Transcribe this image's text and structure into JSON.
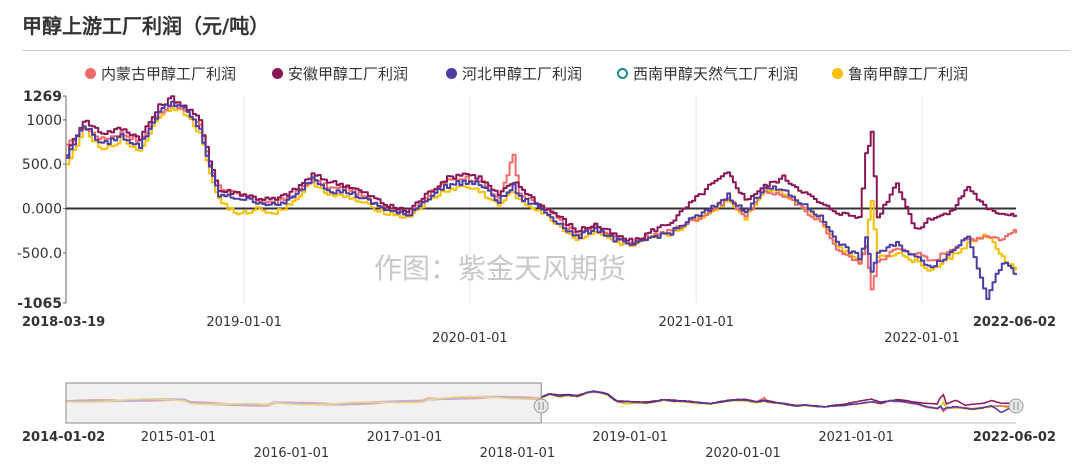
{
  "title": "甲醇上游工厂利润（元/吨）",
  "watermark": "作图：紫金天风期货",
  "chart_data": {
    "type": "line",
    "title": "甲醇上游工厂利润（元/吨）",
    "xlabel": "",
    "ylabel": "",
    "x_range": [
      "2018-03-19",
      "2022-06-02"
    ],
    "ylim": [
      -1065,
      1269
    ],
    "y_ticks": [
      {
        "value": 1269,
        "label": "1269"
      },
      {
        "value": 1000,
        "label": "1000"
      },
      {
        "value": 500,
        "label": "500.0"
      },
      {
        "value": 0,
        "label": "0.000"
      },
      {
        "value": -500,
        "label": "-500.0"
      },
      {
        "value": -1065,
        "label": "-1065"
      }
    ],
    "x_ticks": [
      {
        "date": "2018-03-19",
        "label": "2018-03-19",
        "row": 0,
        "edge": "start"
      },
      {
        "date": "2019-01-01",
        "label": "2019-01-01",
        "row": 0
      },
      {
        "date": "2020-01-01",
        "label": "2020-01-01",
        "row": 1
      },
      {
        "date": "2021-01-01",
        "label": "2021-01-01",
        "row": 0
      },
      {
        "date": "2022-01-01",
        "label": "2022-01-01",
        "row": 1
      },
      {
        "date": "2022-06-02",
        "label": "2022-06-02",
        "row": 0,
        "edge": "end"
      }
    ],
    "legend_position": "top",
    "grid": "vertical",
    "series": [
      {
        "name": "内蒙古甲醇工厂利润",
        "color": "#f26b6b",
        "marker": "filled",
        "points": [
          [
            "2018-03-19",
            700
          ],
          [
            "2018-04-15",
            920
          ],
          [
            "2018-05-15",
            780
          ],
          [
            "2018-06-15",
            850
          ],
          [
            "2018-07-15",
            760
          ],
          [
            "2018-08-15",
            1080
          ],
          [
            "2018-09-05",
            1180
          ],
          [
            "2018-09-25",
            1100
          ],
          [
            "2018-10-20",
            950
          ],
          [
            "2018-11-05",
            500
          ],
          [
            "2018-11-20",
            250
          ],
          [
            "2018-12-20",
            150
          ],
          [
            "2019-01-20",
            100
          ],
          [
            "2019-02-20",
            60
          ],
          [
            "2019-03-20",
            150
          ],
          [
            "2019-04-20",
            320
          ],
          [
            "2019-05-20",
            230
          ],
          [
            "2019-06-20",
            220
          ],
          [
            "2019-07-20",
            100
          ],
          [
            "2019-08-20",
            10
          ],
          [
            "2019-09-20",
            -60
          ],
          [
            "2019-10-20",
            120
          ],
          [
            "2019-11-20",
            300
          ],
          [
            "2019-12-20",
            350
          ],
          [
            "2020-01-15",
            320
          ],
          [
            "2020-02-15",
            100
          ],
          [
            "2020-03-10",
            600
          ],
          [
            "2020-03-20",
            150
          ],
          [
            "2020-04-20",
            40
          ],
          [
            "2020-05-15",
            -80
          ],
          [
            "2020-06-20",
            -300
          ],
          [
            "2020-07-20",
            -200
          ],
          [
            "2020-08-20",
            -320
          ],
          [
            "2020-09-20",
            -400
          ],
          [
            "2020-10-20",
            -300
          ],
          [
            "2020-11-20",
            -250
          ],
          [
            "2020-12-20",
            -150
          ],
          [
            "2021-01-20",
            -40
          ],
          [
            "2021-02-20",
            120
          ],
          [
            "2021-03-20",
            -80
          ],
          [
            "2021-04-20",
            200
          ],
          [
            "2021-05-20",
            150
          ],
          [
            "2021-06-20",
            0
          ],
          [
            "2021-07-20",
            -150
          ],
          [
            "2021-08-20",
            -500
          ],
          [
            "2021-09-20",
            -600
          ],
          [
            "2021-10-01",
            -450
          ],
          [
            "2021-10-10",
            -900
          ],
          [
            "2021-10-20",
            -600
          ],
          [
            "2021-11-20",
            -450
          ],
          [
            "2021-12-20",
            -500
          ],
          [
            "2022-01-15",
            -600
          ],
          [
            "2022-02-15",
            -450
          ],
          [
            "2022-03-15",
            -350
          ],
          [
            "2022-04-15",
            -300
          ],
          [
            "2022-05-10",
            -350
          ],
          [
            "2022-05-25",
            -250
          ],
          [
            "2022-06-02",
            -280
          ]
        ]
      },
      {
        "name": "安徽甲醇工厂利润",
        "color": "#8a1656",
        "marker": "filled",
        "points": [
          [
            "2018-03-19",
            620
          ],
          [
            "2018-04-15",
            1000
          ],
          [
            "2018-05-15",
            850
          ],
          [
            "2018-06-15",
            900
          ],
          [
            "2018-07-15",
            800
          ],
          [
            "2018-08-15",
            1150
          ],
          [
            "2018-09-05",
            1250
          ],
          [
            "2018-09-25",
            1150
          ],
          [
            "2018-10-20",
            1000
          ],
          [
            "2018-11-05",
            550
          ],
          [
            "2018-11-20",
            200
          ],
          [
            "2018-12-20",
            180
          ],
          [
            "2019-01-20",
            120
          ],
          [
            "2019-02-20",
            100
          ],
          [
            "2019-03-20",
            200
          ],
          [
            "2019-04-20",
            380
          ],
          [
            "2019-05-20",
            300
          ],
          [
            "2019-06-20",
            250
          ],
          [
            "2019-07-20",
            150
          ],
          [
            "2019-08-20",
            30
          ],
          [
            "2019-09-20",
            -30
          ],
          [
            "2019-10-20",
            150
          ],
          [
            "2019-11-20",
            330
          ],
          [
            "2019-12-20",
            400
          ],
          [
            "2020-01-15",
            350
          ],
          [
            "2020-02-15",
            150
          ],
          [
            "2020-03-10",
            300
          ],
          [
            "2020-03-20",
            250
          ],
          [
            "2020-04-20",
            50
          ],
          [
            "2020-05-15",
            -50
          ],
          [
            "2020-06-20",
            -250
          ],
          [
            "2020-07-20",
            -180
          ],
          [
            "2020-08-20",
            -300
          ],
          [
            "2020-09-20",
            -380
          ],
          [
            "2020-10-20",
            -250
          ],
          [
            "2020-11-20",
            -150
          ],
          [
            "2020-12-20",
            50
          ],
          [
            "2021-01-20",
            250
          ],
          [
            "2021-02-20",
            400
          ],
          [
            "2021-03-20",
            100
          ],
          [
            "2021-04-20",
            250
          ],
          [
            "2021-05-20",
            350
          ],
          [
            "2021-06-20",
            200
          ],
          [
            "2021-07-20",
            50
          ],
          [
            "2021-08-20",
            -50
          ],
          [
            "2021-09-20",
            -100
          ],
          [
            "2021-10-01",
            600
          ],
          [
            "2021-10-10",
            850
          ],
          [
            "2021-10-20",
            -100
          ],
          [
            "2021-11-20",
            300
          ],
          [
            "2021-12-20",
            -250
          ],
          [
            "2022-01-15",
            -100
          ],
          [
            "2022-02-15",
            -50
          ],
          [
            "2022-03-15",
            250
          ],
          [
            "2022-04-15",
            -20
          ],
          [
            "2022-05-10",
            -50
          ],
          [
            "2022-05-25",
            -60
          ],
          [
            "2022-06-02",
            -70
          ]
        ]
      },
      {
        "name": "河北甲醇工厂利润",
        "color": "#4b3ea3",
        "marker": "filled",
        "points": [
          [
            "2018-03-19",
            580
          ],
          [
            "2018-04-15",
            950
          ],
          [
            "2018-05-15",
            720
          ],
          [
            "2018-06-15",
            820
          ],
          [
            "2018-07-15",
            700
          ],
          [
            "2018-08-15",
            1100
          ],
          [
            "2018-09-05",
            1200
          ],
          [
            "2018-09-25",
            1120
          ],
          [
            "2018-10-20",
            900
          ],
          [
            "2018-11-05",
            450
          ],
          [
            "2018-11-20",
            150
          ],
          [
            "2018-12-20",
            120
          ],
          [
            "2019-01-20",
            80
          ],
          [
            "2019-02-20",
            30
          ],
          [
            "2019-03-20",
            120
          ],
          [
            "2019-04-20",
            350
          ],
          [
            "2019-05-20",
            200
          ],
          [
            "2019-06-20",
            180
          ],
          [
            "2019-07-20",
            80
          ],
          [
            "2019-08-20",
            -20
          ],
          [
            "2019-09-20",
            -80
          ],
          [
            "2019-10-20",
            100
          ],
          [
            "2019-11-20",
            250
          ],
          [
            "2019-12-20",
            300
          ],
          [
            "2020-01-15",
            280
          ],
          [
            "2020-02-15",
            80
          ],
          [
            "2020-03-10",
            250
          ],
          [
            "2020-03-20",
            120
          ],
          [
            "2020-04-20",
            20
          ],
          [
            "2020-05-15",
            -120
          ],
          [
            "2020-06-20",
            -330
          ],
          [
            "2020-07-20",
            -220
          ],
          [
            "2020-08-20",
            -350
          ],
          [
            "2020-09-20",
            -420
          ],
          [
            "2020-10-20",
            -320
          ],
          [
            "2020-11-20",
            -270
          ],
          [
            "2020-12-20",
            -130
          ],
          [
            "2021-01-20",
            -20
          ],
          [
            "2021-02-20",
            150
          ],
          [
            "2021-03-20",
            -50
          ],
          [
            "2021-04-20",
            250
          ],
          [
            "2021-05-20",
            200
          ],
          [
            "2021-06-20",
            50
          ],
          [
            "2021-07-20",
            -100
          ],
          [
            "2021-08-20",
            -400
          ],
          [
            "2021-09-20",
            -550
          ],
          [
            "2021-10-01",
            -350
          ],
          [
            "2021-10-10",
            -700
          ],
          [
            "2021-10-20",
            -500
          ],
          [
            "2021-11-20",
            -400
          ],
          [
            "2021-12-20",
            -550
          ],
          [
            "2022-01-15",
            -650
          ],
          [
            "2022-02-15",
            -500
          ],
          [
            "2022-03-15",
            -300
          ],
          [
            "2022-04-15",
            -1000
          ],
          [
            "2022-05-10",
            -600
          ],
          [
            "2022-05-25",
            -700
          ],
          [
            "2022-06-02",
            -750
          ]
        ]
      },
      {
        "name": "西南甲醇天然气工厂利润",
        "color": "#1f8a8a",
        "marker": "hollow",
        "points": []
      },
      {
        "name": "鲁南甲醇工厂利润",
        "color": "#f5c000",
        "marker": "filled",
        "points": [
          [
            "2018-03-19",
            480
          ],
          [
            "2018-04-15",
            900
          ],
          [
            "2018-05-15",
            650
          ],
          [
            "2018-06-15",
            780
          ],
          [
            "2018-07-15",
            650
          ],
          [
            "2018-08-15",
            1050
          ],
          [
            "2018-09-05",
            1150
          ],
          [
            "2018-09-25",
            1080
          ],
          [
            "2018-10-20",
            850
          ],
          [
            "2018-11-05",
            400
          ],
          [
            "2018-11-20",
            100
          ],
          [
            "2018-12-20",
            -80
          ],
          [
            "2019-01-20",
            0
          ],
          [
            "2019-02-20",
            -50
          ],
          [
            "2019-03-20",
            80
          ],
          [
            "2019-04-20",
            300
          ],
          [
            "2019-05-20",
            150
          ],
          [
            "2019-06-20",
            120
          ],
          [
            "2019-07-20",
            30
          ],
          [
            "2019-08-20",
            -50
          ],
          [
            "2019-09-20",
            -100
          ],
          [
            "2019-10-20",
            60
          ],
          [
            "2019-11-20",
            200
          ],
          [
            "2019-12-20",
            250
          ],
          [
            "2020-01-15",
            200
          ],
          [
            "2020-02-15",
            30
          ],
          [
            "2020-03-10",
            200
          ],
          [
            "2020-03-20",
            80
          ],
          [
            "2020-04-20",
            -20
          ],
          [
            "2020-05-15",
            -150
          ],
          [
            "2020-06-20",
            -350
          ],
          [
            "2020-07-20",
            -250
          ],
          [
            "2020-08-20",
            -380
          ],
          [
            "2020-09-20",
            -430
          ],
          [
            "2020-10-20",
            -330
          ],
          [
            "2020-11-20",
            -280
          ],
          [
            "2020-12-20",
            -150
          ],
          [
            "2021-01-20",
            -50
          ],
          [
            "2021-02-20",
            100
          ],
          [
            "2021-03-20",
            -100
          ],
          [
            "2021-04-20",
            220
          ],
          [
            "2021-05-20",
            180
          ],
          [
            "2021-06-20",
            30
          ],
          [
            "2021-07-20",
            -130
          ],
          [
            "2021-08-20",
            -450
          ],
          [
            "2021-09-20",
            -580
          ],
          [
            "2021-10-01",
            -400
          ],
          [
            "2021-10-10",
            100
          ],
          [
            "2021-10-20",
            -550
          ],
          [
            "2021-11-20",
            -500
          ],
          [
            "2021-12-20",
            -600
          ],
          [
            "2022-01-15",
            -700
          ],
          [
            "2022-02-15",
            -550
          ],
          [
            "2022-03-15",
            -400
          ],
          [
            "2022-04-15",
            -300
          ],
          [
            "2022-05-10",
            -550
          ],
          [
            "2022-05-25",
            -650
          ],
          [
            "2022-06-02",
            -700
          ]
        ]
      }
    ],
    "navigator": {
      "x_range": [
        "2014-01-02",
        "2022-06-02"
      ],
      "selected_range": [
        "2018-03-19",
        "2022-06-02"
      ],
      "x_ticks": [
        {
          "date": "2014-01-02",
          "label": "2014-01-02",
          "row": 0,
          "edge": "start"
        },
        {
          "date": "2015-01-01",
          "label": "2015-01-01",
          "row": 0
        },
        {
          "date": "2016-01-01",
          "label": "2016-01-01",
          "row": 1
        },
        {
          "date": "2017-01-01",
          "label": "2017-01-01",
          "row": 0
        },
        {
          "date": "2018-01-01",
          "label": "2018-01-01",
          "row": 1
        },
        {
          "date": "2019-01-01",
          "label": "2019-01-01",
          "row": 0
        },
        {
          "date": "2020-01-01",
          "label": "2020-01-01",
          "row": 1
        },
        {
          "date": "2021-01-01",
          "label": "2021-01-01",
          "row": 0
        },
        {
          "date": "2022-06-02",
          "label": "2022-06-02",
          "row": 0,
          "edge": "end"
        }
      ]
    }
  }
}
